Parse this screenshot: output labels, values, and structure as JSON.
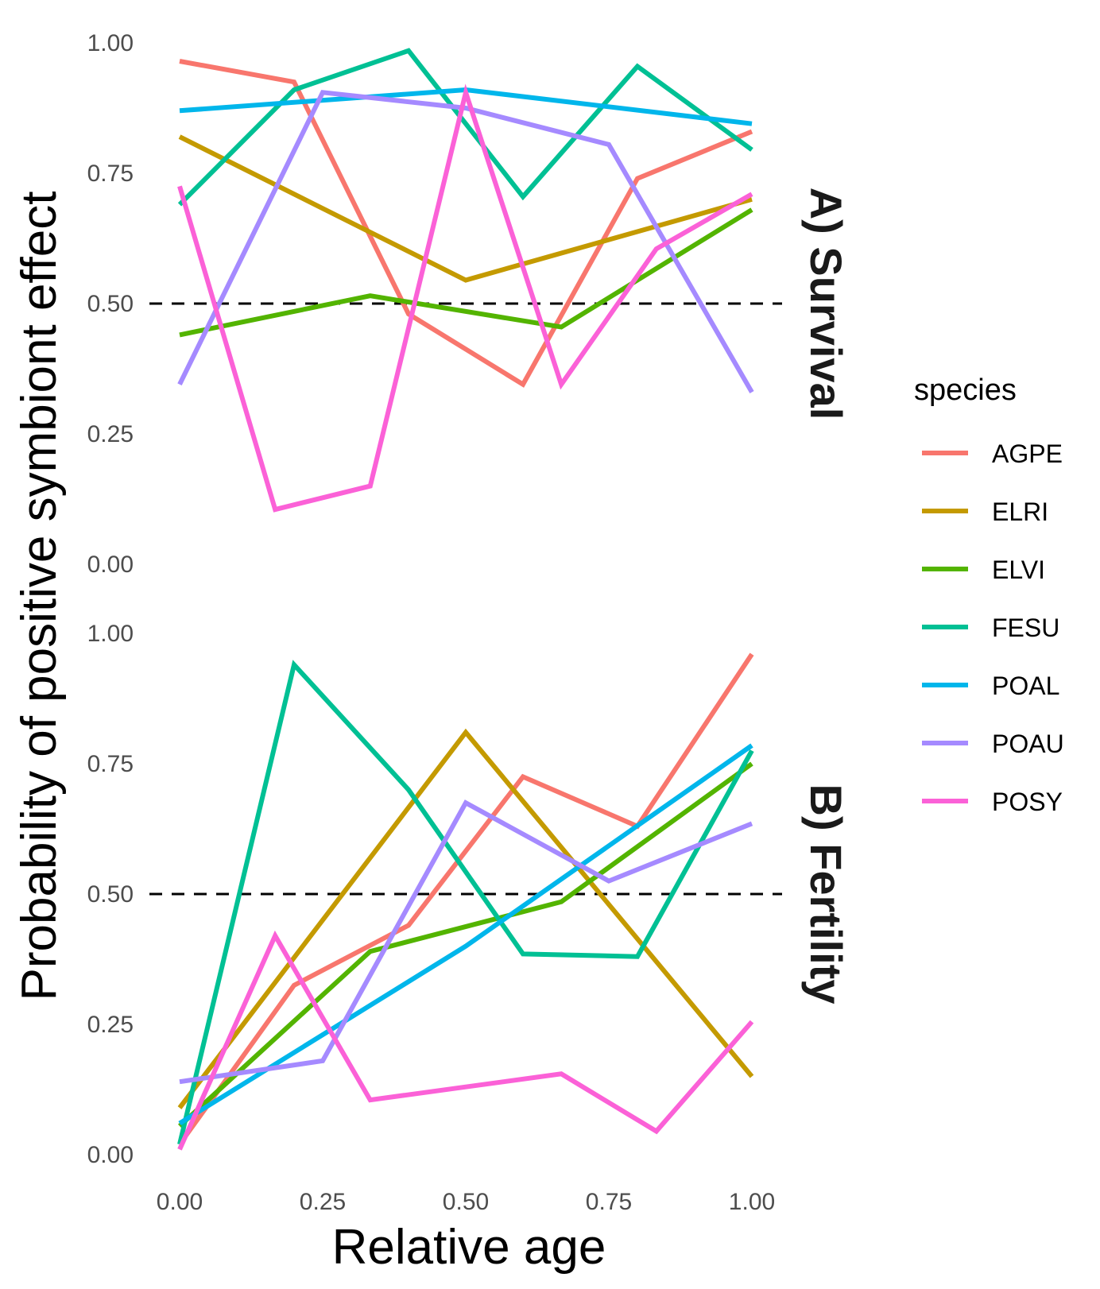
{
  "chart_data": {
    "type": "line",
    "xlabel": "Relative age",
    "ylabel": "Probability of positive symbiont effect",
    "xlim": [
      0,
      1
    ],
    "ylim": [
      0,
      1
    ],
    "x_ticks": [
      "0.00",
      "0.25",
      "0.50",
      "0.75",
      "1.00"
    ],
    "y_ticks": [
      "0.00",
      "0.25",
      "0.50",
      "0.75",
      "1.00"
    ],
    "reference_line": 0.5,
    "grid": false,
    "legend_position": "right",
    "legend_title": "species",
    "species": [
      {
        "name": "AGPE",
        "color": "#F8766D"
      },
      {
        "name": "ELRI",
        "color": "#C49A00"
      },
      {
        "name": "ELVI",
        "color": "#53B400"
      },
      {
        "name": "FESU",
        "color": "#00C094"
      },
      {
        "name": "POAL",
        "color": "#00B6EB"
      },
      {
        "name": "POAU",
        "color": "#A58AFF"
      },
      {
        "name": "POSY",
        "color": "#FB61D7"
      }
    ],
    "panels": [
      {
        "label": "A) Survival",
        "series": [
          {
            "name": "AGPE",
            "x": [
              0,
              0.2,
              0.4,
              0.6,
              0.8,
              1.0
            ],
            "y": [
              0.965,
              0.925,
              0.48,
              0.345,
              0.74,
              0.83
            ]
          },
          {
            "name": "ELRI",
            "x": [
              0,
              0.5,
              1.0
            ],
            "y": [
              0.82,
              0.545,
              0.7
            ]
          },
          {
            "name": "ELVI",
            "x": [
              0,
              0.333,
              0.667,
              1.0
            ],
            "y": [
              0.44,
              0.515,
              0.455,
              0.68
            ]
          },
          {
            "name": "FESU",
            "x": [
              0,
              0.2,
              0.4,
              0.6,
              0.8,
              1.0
            ],
            "y": [
              0.69,
              0.91,
              0.985,
              0.705,
              0.955,
              0.795
            ]
          },
          {
            "name": "POAL",
            "x": [
              0,
              0.5,
              1.0
            ],
            "y": [
              0.87,
              0.91,
              0.845
            ]
          },
          {
            "name": "POAU",
            "x": [
              0,
              0.25,
              0.5,
              0.75,
              1.0
            ],
            "y": [
              0.345,
              0.905,
              0.875,
              0.805,
              0.33
            ]
          },
          {
            "name": "POSY",
            "x": [
              0,
              0.167,
              0.333,
              0.5,
              0.667,
              0.833,
              1.0
            ],
            "y": [
              0.725,
              0.105,
              0.15,
              0.905,
              0.345,
              0.605,
              0.71
            ]
          }
        ]
      },
      {
        "label": "B) Fertility",
        "series": [
          {
            "name": "AGPE",
            "x": [
              0,
              0.2,
              0.4,
              0.6,
              0.8,
              1.0
            ],
            "y": [
              0.02,
              0.325,
              0.44,
              0.725,
              0.63,
              0.96
            ]
          },
          {
            "name": "ELRI",
            "x": [
              0,
              0.5,
              1.0
            ],
            "y": [
              0.09,
              0.81,
              0.15
            ]
          },
          {
            "name": "ELVI",
            "x": [
              0,
              0.333,
              0.667,
              1.0
            ],
            "y": [
              0.055,
              0.39,
              0.485,
              0.75
            ]
          },
          {
            "name": "FESU",
            "x": [
              0,
              0.2,
              0.4,
              0.6,
              0.8,
              1.0
            ],
            "y": [
              0.02,
              0.94,
              0.7,
              0.385,
              0.38,
              0.775
            ]
          },
          {
            "name": "POAL",
            "x": [
              0,
              0.5,
              1.0
            ],
            "y": [
              0.06,
              0.4,
              0.785
            ]
          },
          {
            "name": "POAU",
            "x": [
              0,
              0.25,
              0.5,
              0.75,
              1.0
            ],
            "y": [
              0.14,
              0.18,
              0.675,
              0.525,
              0.635
            ]
          },
          {
            "name": "POSY",
            "x": [
              0,
              0.167,
              0.333,
              0.5,
              0.667,
              0.833,
              1.0
            ],
            "y": [
              0.01,
              0.42,
              0.105,
              0.13,
              0.155,
              0.045,
              0.255
            ]
          }
        ]
      }
    ]
  }
}
